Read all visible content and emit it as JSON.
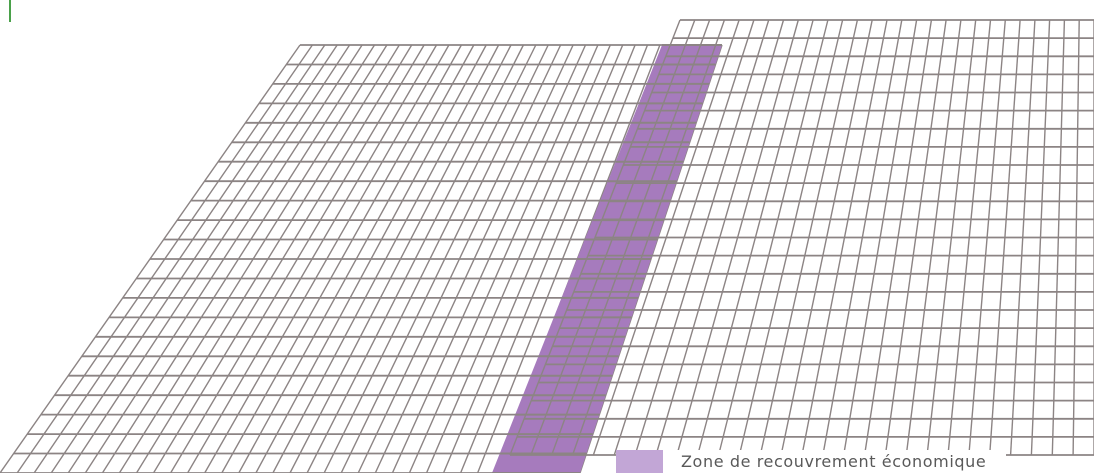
{
  "legend": {
    "label": "Zone de recouvrement économique",
    "swatch_color": "#c2a6d6"
  },
  "colors": {
    "grid_line": "#8c8484",
    "overlap_band": "#a67bbd",
    "edge_mark": "#4aa14a",
    "background": "#ffffff"
  }
}
